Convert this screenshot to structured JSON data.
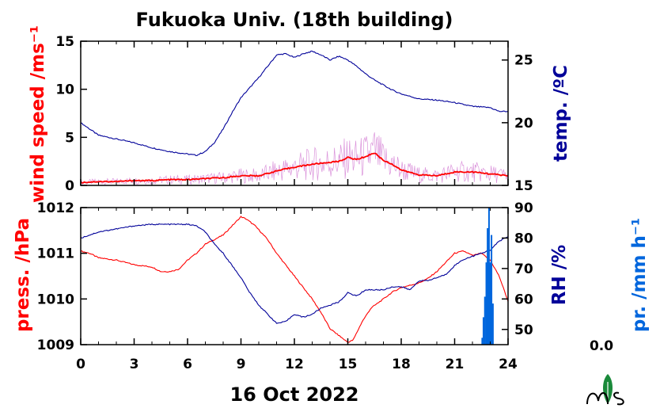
{
  "title": "Fukuoka Univ. (18th building)",
  "date_label": "16 Oct 2022",
  "precip_value_label": "0.0",
  "colors": {
    "wind": "#ff0000",
    "wind_raw": "#cc66cc",
    "temp": "#000099",
    "pressure": "#ff0000",
    "rh": "#000099",
    "precip": "#0066dd"
  },
  "logo_icon": "leaf-ms-logo-icon",
  "chart_data": [
    {
      "type": "line",
      "panel": "top",
      "x_ticks": [
        0,
        3,
        6,
        9,
        12,
        15,
        18,
        21,
        24
      ],
      "xlim": [
        0,
        24
      ],
      "left_axis": {
        "label": "wind speed /ms⁻¹",
        "ylim": [
          0,
          15
        ],
        "ticks": [
          0,
          5,
          10,
          15
        ]
      },
      "right_axis": {
        "label": "temp. /ºC",
        "ylim": [
          15,
          26.5
        ],
        "ticks": [
          15,
          20,
          25
        ]
      },
      "series": [
        {
          "name": "",
          "axis": "right",
          "x": [
            0,
            0.5,
            1,
            2,
            3,
            4,
            5,
            6,
            6.5,
            7,
            7.5,
            8,
            8.5,
            9,
            9.5,
            10,
            10.5,
            11,
            11.5,
            12,
            12.5,
            13,
            13.5,
            14,
            14.5,
            15,
            15.5,
            16,
            16.5,
            17,
            17.5,
            18,
            18.5,
            19,
            20,
            21,
            22,
            23,
            23.5,
            24
          ],
          "values": [
            20.0,
            19.5,
            19.0,
            18.7,
            18.4,
            18.0,
            17.7,
            17.5,
            17.4,
            17.7,
            18.4,
            19.5,
            20.8,
            22.0,
            22.8,
            23.6,
            24.5,
            25.4,
            25.5,
            25.2,
            25.5,
            25.7,
            25.4,
            25.0,
            25.3,
            25.0,
            24.5,
            23.9,
            23.4,
            23.0,
            22.6,
            22.3,
            22.1,
            21.9,
            21.8,
            21.6,
            21.3,
            21.2,
            20.9,
            20.9
          ]
        },
        {
          "name": "",
          "axis": "left",
          "x": [
            0,
            1,
            2,
            3,
            4,
            5,
            6,
            7,
            8,
            9,
            10,
            11,
            12,
            13,
            14,
            14.5,
            15,
            15.5,
            16,
            16.5,
            17,
            17.5,
            18,
            19,
            20,
            21,
            22,
            23,
            24
          ],
          "values": [
            0.3,
            0.4,
            0.4,
            0.5,
            0.5,
            0.6,
            0.6,
            0.7,
            0.8,
            1.0,
            1.0,
            1.5,
            1.9,
            2.2,
            2.4,
            2.5,
            2.9,
            2.7,
            3.0,
            3.4,
            2.6,
            2.2,
            1.6,
            1.1,
            1.0,
            1.4,
            1.4,
            1.2,
            1.0
          ]
        }
      ]
    },
    {
      "type": "line",
      "panel": "bottom",
      "x_ticks": [
        0,
        3,
        6,
        9,
        12,
        15,
        18,
        21,
        24
      ],
      "xlim": [
        0,
        24
      ],
      "xlabel": "16 Oct 2022",
      "left_axis": {
        "label": "press. /hPa",
        "ylim": [
          1009,
          1012
        ],
        "ticks": [
          1009,
          1010,
          1011,
          1012
        ]
      },
      "right_axis": {
        "label": "RH /%",
        "ylim": [
          45,
          90
        ],
        "ticks": [
          50,
          60,
          70,
          80,
          90
        ]
      },
      "precip_axis": {
        "label": "pr. /mm h⁻¹"
      },
      "series": [
        {
          "name": "",
          "axis": "left",
          "x": [
            0,
            0.5,
            1,
            2,
            3,
            4,
            4.5,
            5,
            5.5,
            6,
            6.5,
            7,
            7.5,
            8,
            8.5,
            9,
            9.3,
            9.8,
            10.5,
            11,
            11.5,
            12,
            12.5,
            13,
            13.5,
            14,
            14.5,
            15,
            15.3,
            15.8,
            16.3,
            17,
            17.5,
            18,
            18.5,
            19,
            19.5,
            20,
            20.5,
            21,
            21.5,
            22,
            22.5,
            23,
            23.5,
            24
          ],
          "values": [
            1011.05,
            1011.0,
            1010.9,
            1010.85,
            1010.75,
            1010.7,
            1010.6,
            1010.6,
            1010.65,
            1010.85,
            1011.0,
            1011.2,
            1011.3,
            1011.4,
            1011.6,
            1011.8,
            1011.75,
            1011.6,
            1011.3,
            1011.0,
            1010.75,
            1010.5,
            1010.25,
            1010.0,
            1009.7,
            1009.35,
            1009.2,
            1009.05,
            1009.1,
            1009.5,
            1009.8,
            1010.0,
            1010.15,
            1010.25,
            1010.3,
            1010.35,
            1010.45,
            1010.6,
            1010.8,
            1011.0,
            1011.05,
            1010.95,
            1011.0,
            1010.85,
            1010.5,
            1009.95
          ]
        },
        {
          "name": "",
          "axis": "right",
          "x": [
            0,
            0.5,
            1,
            2,
            3,
            4,
            5,
            6,
            6.5,
            7,
            7.5,
            8,
            8.5,
            9,
            9.5,
            10,
            10.5,
            11,
            11.5,
            12,
            12.5,
            13,
            13.5,
            14,
            14.5,
            15,
            15.5,
            16,
            16.5,
            17,
            17.5,
            18,
            18.5,
            19,
            19.5,
            20,
            20.5,
            21,
            21.5,
            22,
            22.5,
            23,
            23.5,
            24
          ],
          "values": [
            80.0,
            81.0,
            82.0,
            83.0,
            84.0,
            84.5,
            84.5,
            84.5,
            84.0,
            82.0,
            78.0,
            75.0,
            71.0,
            67.0,
            62.0,
            58.0,
            55.0,
            52.0,
            52.5,
            55.0,
            54.0,
            55.0,
            57.0,
            58.0,
            59.0,
            62.0,
            61.0,
            63.0,
            63.0,
            63.0,
            64.0,
            64.0,
            63.0,
            66.0,
            66.0,
            67.0,
            68.0,
            71.0,
            73.0,
            74.0,
            75.0,
            76.0,
            79.0,
            80.5
          ]
        },
        {
          "name": "",
          "axis": "precip",
          "type": "bar",
          "x": [
            22.55,
            22.62,
            22.7,
            22.78,
            22.85,
            22.93,
            23.0,
            23.07,
            23.15
          ],
          "values": [
            0.05,
            0.2,
            0.35,
            0.6,
            0.85,
            1.0,
            0.6,
            0.8,
            0.3
          ]
        }
      ]
    }
  ]
}
